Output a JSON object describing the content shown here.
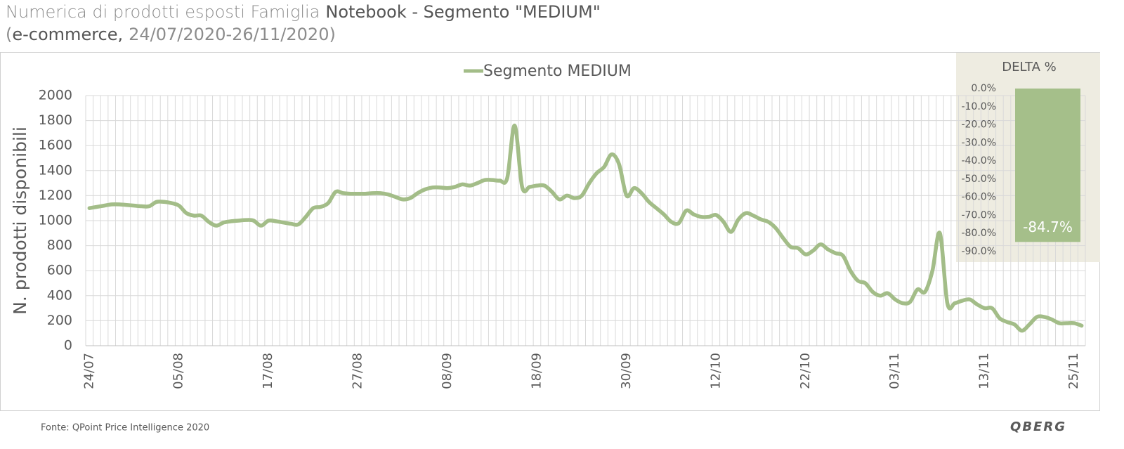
{
  "title": "Numerica di prodotti esposti Famiglia",
  "title_bold": "Notebook - Segmento \"MEDIUM\"",
  "subtitle_runs": [
    "(",
    "e-commerce,",
    "24/07/2020-26/11/2020)"
  ],
  "footer": "Fonte: QPoint Price Intelligence 2020",
  "logo": "QBERG",
  "chart_data": [
    {
      "type": "line",
      "y_label": "N. prodotti disponibili",
      "categories": [
        "24/07",
        null,
        null,
        null,
        null,
        null,
        null,
        null,
        null,
        null,
        null,
        null,
        "05/08",
        null,
        null,
        null,
        null,
        null,
        null,
        null,
        null,
        null,
        null,
        null,
        "17/08",
        null,
        null,
        null,
        null,
        null,
        null,
        null,
        null,
        null,
        null,
        null,
        "27/08",
        null,
        null,
        null,
        null,
        null,
        null,
        null,
        null,
        null,
        null,
        null,
        "08/09",
        null,
        null,
        null,
        null,
        null,
        null,
        null,
        null,
        null,
        null,
        null,
        "18/09",
        null,
        null,
        null,
        null,
        null,
        null,
        null,
        null,
        null,
        null,
        null,
        "30/09",
        null,
        null,
        null,
        null,
        null,
        null,
        null,
        null,
        null,
        null,
        null,
        "12/10",
        null,
        null,
        null,
        null,
        null,
        null,
        null,
        null,
        null,
        null,
        null,
        "22/10",
        null,
        null,
        null,
        null,
        null,
        null,
        null,
        null,
        null,
        null,
        null,
        "03/11",
        null,
        null,
        null,
        null,
        null,
        null,
        null,
        null,
        null,
        null,
        null,
        "13/11",
        null,
        null,
        null,
        null,
        null,
        null,
        null,
        null,
        null,
        null,
        null,
        "25/11",
        null
      ],
      "series": [
        {
          "name": "Segmento MEDIUM",
          "color": "#a3bd88",
          "values": [
            1100,
            1110,
            1120,
            1130,
            1130,
            1125,
            1120,
            1115,
            1115,
            1150,
            1150,
            1140,
            1120,
            1060,
            1040,
            1040,
            990,
            960,
            985,
            995,
            1000,
            1005,
            1000,
            960,
            1000,
            995,
            985,
            975,
            970,
            1030,
            1100,
            1110,
            1140,
            1230,
            1220,
            1215,
            1215,
            1215,
            1220,
            1220,
            1210,
            1190,
            1170,
            1180,
            1220,
            1250,
            1265,
            1265,
            1260,
            1270,
            1290,
            1280,
            1300,
            1325,
            1325,
            1320,
            1340,
            1760,
            1270,
            1270,
            1280,
            1280,
            1230,
            1170,
            1200,
            1180,
            1200,
            1300,
            1380,
            1430,
            1530,
            1450,
            1200,
            1260,
            1220,
            1150,
            1100,
            1050,
            990,
            980,
            1080,
            1050,
            1030,
            1030,
            1045,
            990,
            910,
            1010,
            1060,
            1040,
            1010,
            990,
            940,
            860,
            790,
            780,
            730,
            760,
            810,
            770,
            740,
            720,
            600,
            520,
            500,
            430,
            400,
            420,
            370,
            340,
            350,
            450,
            430,
            600,
            900,
            340,
            340,
            360,
            370,
            330,
            300,
            300,
            220,
            190,
            170,
            120,
            170,
            230,
            230,
            210,
            180,
            180,
            180,
            160
          ]
        }
      ],
      "ylim": [
        0,
        2000
      ],
      "yticks": [
        0,
        200,
        400,
        600,
        800,
        1000,
        1200,
        1400,
        1600,
        1800,
        2000
      ],
      "grid": true,
      "legend": "top"
    },
    {
      "type": "bar",
      "title": "DELTA %",
      "categories": [
        null
      ],
      "values": [
        -84.7
      ],
      "value_labels": [
        "-84.7%"
      ],
      "color": "#a5bf8a",
      "ylim": [
        -90,
        0
      ],
      "yticks": [
        {
          "value": 0,
          "label": "0.0%"
        },
        {
          "value": -10,
          "label": "-10.0%"
        },
        {
          "value": -20,
          "label": "-20.0%"
        },
        {
          "value": -30,
          "label": "-30.0%"
        },
        {
          "value": -40,
          "label": "-40.0%"
        },
        {
          "value": -50,
          "label": "-50.0%"
        },
        {
          "value": -60,
          "label": "-60.0%"
        },
        {
          "value": -70,
          "label": "-70.0%"
        },
        {
          "value": -80,
          "label": "-80.0%"
        },
        {
          "value": -90,
          "label": "-90.0%"
        }
      ],
      "grid": false
    }
  ]
}
